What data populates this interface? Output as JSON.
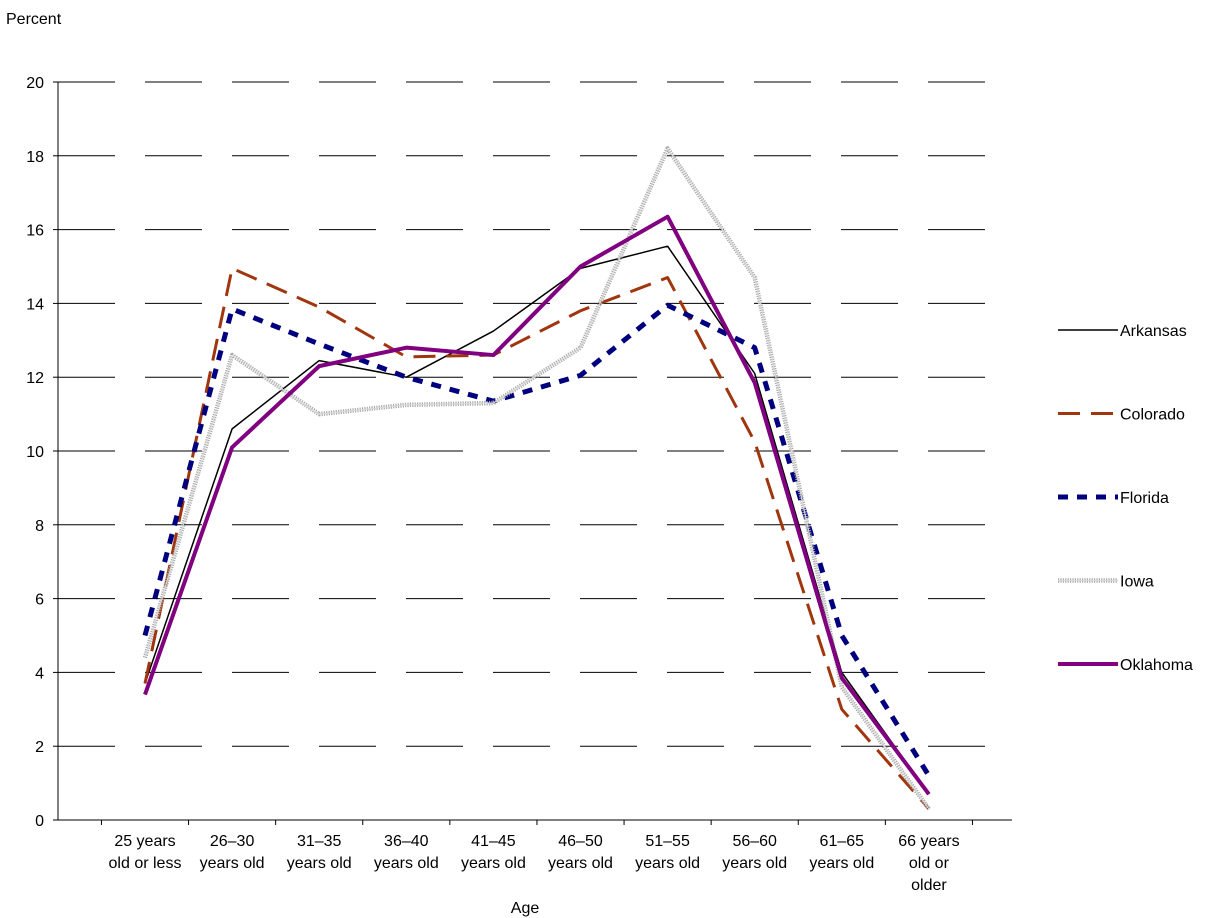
{
  "chart_data": {
    "type": "line",
    "ylabel": "Percent",
    "xlabel": "Age",
    "ylim": [
      0,
      20
    ],
    "yticks": [
      0,
      2,
      4,
      6,
      8,
      10,
      12,
      14,
      16,
      18,
      20
    ],
    "grid": "horizontal dashed",
    "legend_position": "right",
    "categories": [
      [
        "25 years",
        "old or less"
      ],
      [
        "26–30",
        "years old"
      ],
      [
        "31–35",
        "years old"
      ],
      [
        "36–40",
        "years old"
      ],
      [
        "41–45",
        "years old"
      ],
      [
        "46–50",
        "years old"
      ],
      [
        "51–55",
        "years old"
      ],
      [
        "56–60",
        "years old"
      ],
      [
        "61–65",
        "years old"
      ],
      [
        "66 years",
        "old or",
        "older"
      ]
    ],
    "series": [
      {
        "name": "Arkansas",
        "color": "#000000",
        "style": "solid-thin",
        "values": [
          3.7,
          10.6,
          12.45,
          12.0,
          13.25,
          14.95,
          15.55,
          12.1,
          4.0,
          0.7
        ]
      },
      {
        "name": "Colorado",
        "color": "#A0360E",
        "style": "long-dash",
        "values": [
          3.7,
          14.95,
          13.9,
          12.55,
          12.6,
          13.8,
          14.7,
          10.25,
          3.0,
          0.3
        ]
      },
      {
        "name": "Florida",
        "color": "#00007F",
        "style": "short-dash",
        "values": [
          5.0,
          13.85,
          12.9,
          12.0,
          11.35,
          12.05,
          13.95,
          12.8,
          5.0,
          1.2
        ]
      },
      {
        "name": "Iowa",
        "color": "#A8A8A8",
        "style": "dotted-band",
        "values": [
          4.4,
          12.6,
          11.0,
          11.25,
          11.3,
          12.8,
          18.2,
          14.7,
          3.6,
          0.3
        ]
      },
      {
        "name": "Oklahoma",
        "color": "#800080",
        "style": "solid-thick",
        "values": [
          3.4,
          10.1,
          12.3,
          12.8,
          12.6,
          15.0,
          16.35,
          11.85,
          3.85,
          0.7
        ]
      }
    ]
  }
}
